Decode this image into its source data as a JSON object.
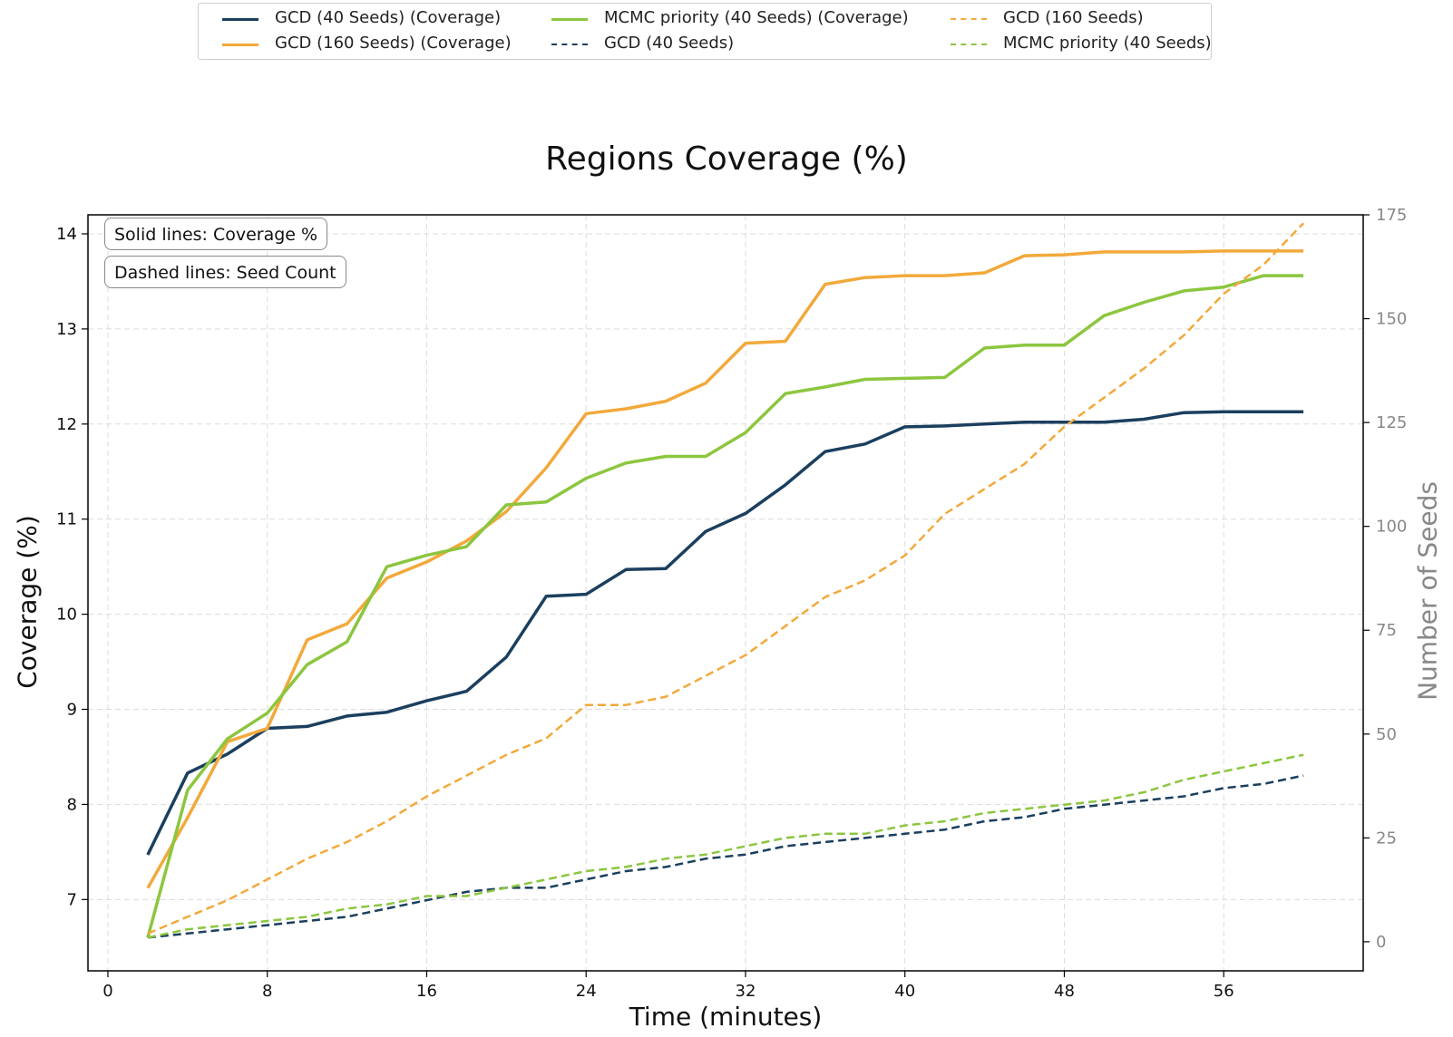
{
  "colors": {
    "gcd40": "#1b3f5e",
    "gcd160": "#f2a93b",
    "mcmc": "#8cc63f",
    "grid": "#dcdcdc",
    "y2_text": "#888888"
  },
  "notes": {
    "solid": "Solid lines: Coverage %",
    "dashed": "Dashed lines: Seed Count"
  },
  "legend": [
    {
      "label": "GCD (40 Seeds) (Coverage)",
      "color": "#1b3f5e",
      "style": "solid"
    },
    {
      "label": "GCD (160 Seeds) (Coverage)",
      "color": "#f2a93b",
      "style": "solid"
    },
    {
      "label": "MCMC priority (40 Seeds) (Coverage)",
      "color": "#8cc63f",
      "style": "solid"
    },
    {
      "label": "GCD (40 Seeds)",
      "color": "#1b3f5e",
      "style": "dashed"
    },
    {
      "label": "GCD (160 Seeds)",
      "color": "#f2a93b",
      "style": "dashed"
    },
    {
      "label": "MCMC priority (40 Seeds)",
      "color": "#8cc63f",
      "style": "dashed"
    }
  ],
  "chart_data": {
    "type": "line",
    "title": "Regions Coverage (%)",
    "xlabel": "Time (minutes)",
    "ylabel": "Coverage (%)",
    "y2label": "Number of Seeds",
    "xlim": [
      -1,
      63
    ],
    "ylim": [
      6.25,
      14.2
    ],
    "y2lim": [
      -7,
      175
    ],
    "xticks": [
      0,
      8,
      16,
      24,
      32,
      40,
      48,
      56
    ],
    "yticks": [
      7,
      8,
      9,
      10,
      11,
      12,
      13,
      14
    ],
    "y2ticks": [
      0,
      25,
      50,
      75,
      100,
      125,
      150,
      175
    ],
    "grid": true,
    "legend_position": "top-center",
    "x": [
      2,
      4,
      6,
      8,
      10,
      12,
      14,
      16,
      18,
      20,
      22,
      24,
      26,
      28,
      30,
      32,
      34,
      36,
      38,
      40,
      42,
      44,
      46,
      48,
      50,
      52,
      54,
      56,
      58,
      60
    ],
    "series": [
      {
        "name": "GCD (40 Seeds) (Coverage)",
        "axis": "left",
        "style": "solid",
        "color": "#1b3f5e",
        "values": [
          7.47,
          8.33,
          8.53,
          8.8,
          8.82,
          8.93,
          8.97,
          9.09,
          9.19,
          9.55,
          10.19,
          10.21,
          10.47,
          10.48,
          10.87,
          11.06,
          11.36,
          11.71,
          11.79,
          11.97,
          11.98,
          12.0,
          12.02,
          12.02,
          12.02,
          12.05,
          12.12,
          12.13,
          12.13,
          12.13
        ]
      },
      {
        "name": "GCD (160 Seeds) (Coverage)",
        "axis": "left",
        "style": "solid",
        "color": "#f2a93b",
        "values": [
          7.12,
          7.86,
          8.66,
          8.8,
          9.73,
          9.9,
          10.38,
          10.55,
          10.77,
          11.08,
          11.54,
          12.11,
          12.16,
          12.24,
          12.43,
          12.85,
          12.87,
          13.47,
          13.54,
          13.56,
          13.56,
          13.59,
          13.77,
          13.78,
          13.81,
          13.81,
          13.81,
          13.82,
          13.82,
          13.82
        ]
      },
      {
        "name": "MCMC priority (40 Seeds) (Coverage)",
        "axis": "left",
        "style": "solid",
        "color": "#8cc63f",
        "values": [
          6.6,
          8.15,
          8.69,
          8.96,
          9.47,
          9.71,
          10.5,
          10.62,
          10.71,
          11.15,
          11.18,
          11.43,
          11.59,
          11.66,
          11.66,
          11.91,
          12.32,
          12.39,
          12.47,
          12.48,
          12.49,
          12.8,
          12.83,
          12.83,
          13.14,
          13.28,
          13.4,
          13.44,
          13.56,
          13.56
        ]
      },
      {
        "name": "GCD (40 Seeds)",
        "axis": "right",
        "style": "dashed",
        "color": "#1b3f5e",
        "values": [
          1,
          2,
          3,
          4,
          5,
          6,
          8,
          10,
          12,
          13,
          13,
          15,
          17,
          18,
          20,
          21,
          23,
          24,
          25,
          26,
          27,
          29,
          30,
          32,
          33,
          34,
          35,
          37,
          38,
          40
        ]
      },
      {
        "name": "GCD (160 Seeds)",
        "axis": "right",
        "style": "dashed",
        "color": "#f2a93b",
        "values": [
          2,
          6,
          10,
          15,
          20,
          24,
          29,
          35,
          40,
          45,
          49,
          57,
          57,
          59,
          64,
          69,
          76,
          83,
          87,
          93,
          103,
          109,
          115,
          124,
          131,
          138,
          146,
          156,
          163,
          173
        ]
      },
      {
        "name": "MCMC priority (40 Seeds)",
        "axis": "right",
        "style": "dashed",
        "color": "#8cc63f",
        "values": [
          1,
          3,
          4,
          5,
          6,
          8,
          9,
          11,
          11,
          13,
          15,
          17,
          18,
          20,
          21,
          23,
          25,
          26,
          26,
          28,
          29,
          31,
          32,
          33,
          34,
          36,
          39,
          41,
          43,
          45
        ]
      }
    ]
  }
}
